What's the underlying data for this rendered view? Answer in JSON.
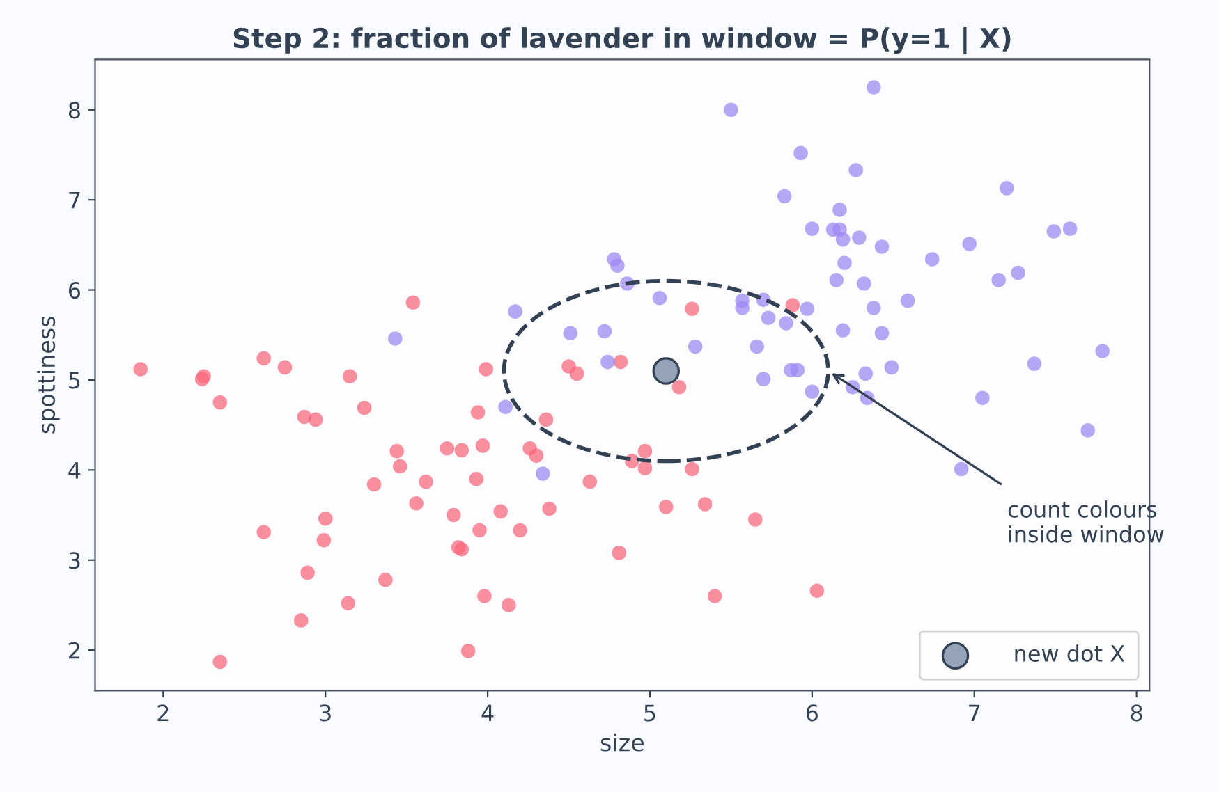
{
  "chart_data": {
    "type": "scatter",
    "title": "Step 2: fraction of lavender in window = P(y=1 | X)",
    "xlabel": "size",
    "ylabel": "spottiness",
    "xlim": [
      1.58,
      8.08
    ],
    "ylim": [
      1.55,
      8.56
    ],
    "xticks": [
      2,
      3,
      4,
      5,
      6,
      7,
      8
    ],
    "yticks": [
      2,
      3,
      4,
      5,
      6,
      7,
      8
    ],
    "grid": false,
    "legend": "bottom right",
    "marker": "circle",
    "series": [
      {
        "color": "#f7687d",
        "x": [
          1.86,
          2.25,
          2.24,
          2.35,
          2.62,
          2.75,
          3.15,
          3.54,
          3.99,
          4.5,
          4.55,
          4.82,
          5.26,
          5.88,
          5.18,
          2.87,
          2.94,
          3.24,
          3.44,
          3.46,
          3.3,
          3.62,
          3.56,
          3.75,
          3.84,
          3.97,
          3.94,
          4.36,
          4.26,
          4.3,
          4.63,
          3.93,
          3.79,
          4.08,
          4.38,
          3.95,
          4.2,
          3.84,
          3.82,
          4.81,
          3.0,
          2.99,
          2.62,
          2.89,
          3.37,
          3.14,
          2.85,
          3.98,
          4.13,
          3.88,
          2.35,
          4.97,
          4.89,
          4.97,
          5.26,
          5.1,
          5.34,
          5.65,
          5.4,
          6.03
        ],
        "values": [
          5.12,
          5.04,
          5.01,
          4.75,
          5.24,
          5.14,
          5.04,
          5.86,
          5.12,
          5.15,
          5.07,
          5.2,
          5.79,
          5.83,
          4.92,
          4.59,
          4.56,
          4.69,
          4.21,
          4.04,
          3.84,
          3.87,
          3.63,
          4.24,
          4.22,
          4.27,
          4.64,
          4.56,
          4.24,
          4.16,
          3.87,
          3.9,
          3.5,
          3.54,
          3.57,
          3.33,
          3.33,
          3.12,
          3.14,
          3.08,
          3.46,
          3.22,
          3.31,
          2.86,
          2.78,
          2.52,
          2.33,
          2.6,
          2.5,
          1.99,
          1.87,
          4.21,
          4.1,
          4.02,
          4.01,
          3.59,
          3.62,
          3.45,
          2.6,
          2.66
        ]
      },
      {
        "color": "#9d88f3",
        "x": [
          6.38,
          5.5,
          5.93,
          6.27,
          7.2,
          5.83,
          6.17,
          6.0,
          6.13,
          6.17,
          6.19,
          6.29,
          6.43,
          6.74,
          6.97,
          7.49,
          7.59,
          6.2,
          6.15,
          6.32,
          6.59,
          7.15,
          7.27,
          4.78,
          4.8,
          4.86,
          5.06,
          5.57,
          5.57,
          5.7,
          5.97,
          5.73,
          5.84,
          6.38,
          6.19,
          6.43,
          5.28,
          5.66,
          5.87,
          5.91,
          6.33,
          6.49,
          7.37,
          7.79,
          5.7,
          6.0,
          6.25,
          6.34,
          7.05,
          7.7,
          6.92,
          3.43,
          4.17,
          4.51,
          4.72,
          4.74,
          4.11,
          4.34
        ],
        "values": [
          8.25,
          8.0,
          7.52,
          7.33,
          7.13,
          7.04,
          6.89,
          6.68,
          6.67,
          6.67,
          6.56,
          6.58,
          6.48,
          6.34,
          6.51,
          6.65,
          6.68,
          6.3,
          6.11,
          6.07,
          5.88,
          6.11,
          6.19,
          6.34,
          6.27,
          6.07,
          5.91,
          5.88,
          5.8,
          5.89,
          5.79,
          5.69,
          5.63,
          5.8,
          5.55,
          5.52,
          5.37,
          5.37,
          5.11,
          5.11,
          5.07,
          5.14,
          5.18,
          5.32,
          5.01,
          4.87,
          4.92,
          4.8,
          4.8,
          4.44,
          4.01,
          5.46,
          5.76,
          5.52,
          5.54,
          5.2,
          4.7,
          3.96
        ]
      },
      {
        "name": "new dot X",
        "color": "#94a3b8",
        "x": [
          5.1
        ],
        "values": [
          5.1
        ]
      }
    ],
    "annotations": [
      "count colours\ninside window"
    ]
  }
}
